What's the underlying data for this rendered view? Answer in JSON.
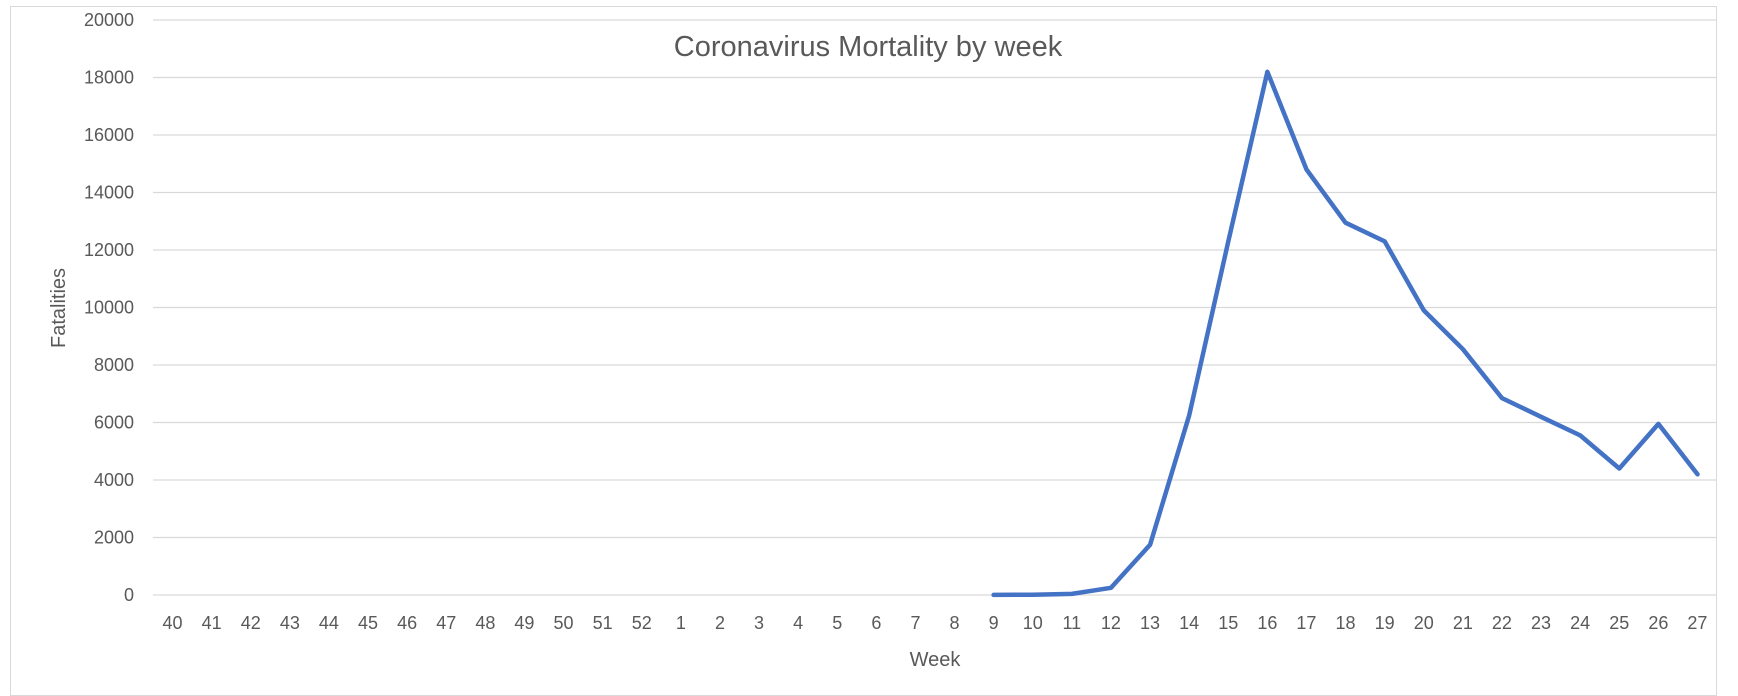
{
  "chart_data": {
    "type": "line",
    "title": "Coronavirus Mortality by week",
    "xlabel": "Week",
    "ylabel": "Fatalities",
    "ylim": [
      0,
      20000
    ],
    "yticks": [
      "0",
      "2000",
      "4000",
      "6000",
      "8000",
      "10000",
      "12000",
      "14000",
      "16000",
      "18000",
      "20000"
    ],
    "categories": [
      "40",
      "41",
      "42",
      "43",
      "44",
      "45",
      "46",
      "47",
      "48",
      "49",
      "50",
      "51",
      "52",
      "1",
      "2",
      "3",
      "4",
      "5",
      "6",
      "7",
      "8",
      "9",
      "10",
      "11",
      "12",
      "13",
      "14",
      "15",
      "16",
      "17",
      "18",
      "19",
      "20",
      "21",
      "22",
      "23",
      "24",
      "25",
      "26",
      "27"
    ],
    "grid": true,
    "legend": "none",
    "series": [
      {
        "color": "#4472c4",
        "values": [
          null,
          null,
          null,
          null,
          null,
          null,
          null,
          null,
          null,
          null,
          null,
          null,
          null,
          null,
          null,
          null,
          null,
          null,
          null,
          null,
          null,
          5,
          10,
          40,
          250,
          1750,
          6250,
          12300,
          18200,
          14800,
          12950,
          12300,
          9900,
          8550,
          6850,
          6200,
          5550,
          4400,
          5950,
          4200
        ]
      }
    ],
    "colors": {
      "line": "#4472c4",
      "grid": "#d9d9d9",
      "text": "#595959"
    }
  }
}
